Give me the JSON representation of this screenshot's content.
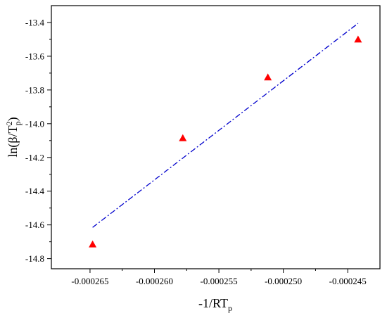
{
  "chart_data": {
    "type": "scatter",
    "xlabel": "-1/RT",
    "xlabel_sub": "p",
    "ylabel": {
      "prefix": "ln(β/T",
      "sup": "2",
      "sub": "p",
      "suffix": ")"
    },
    "xlim": [
      -0.000268,
      -0.0002425
    ],
    "ylim": [
      -14.86,
      -13.3
    ],
    "xticks": [
      -0.000265,
      -0.00026,
      -0.000255,
      -0.00025,
      -0.000245
    ],
    "xtick_labels": [
      "-0.000265",
      "-0.000260",
      "-0.000255",
      "-0.000250",
      "-0.000245"
    ],
    "yticks": [
      -14.8,
      -14.6,
      -14.4,
      -14.2,
      -14.0,
      -13.8,
      -13.6,
      -13.4
    ],
    "ytick_labels": [
      "-14.8",
      "-14.6",
      "-14.4",
      "-14.2",
      "-14.0",
      "-13.8",
      "-13.6",
      "-13.4"
    ],
    "series": [
      {
        "kind": "points",
        "marker": "triangle",
        "color": "#ff0000",
        "x": [
          -0.0002648,
          -0.0002578,
          -0.0002512,
          -0.0002442
        ],
        "y": [
          -14.715,
          -14.085,
          -13.725,
          -13.5
        ]
      },
      {
        "kind": "fit-line",
        "style": "dash-dot",
        "color": "#0000cc",
        "x": [
          -0.0002648,
          -0.0002442
        ],
        "y": [
          -14.615,
          -13.405
        ]
      }
    ],
    "grid": false,
    "legend": "none"
  }
}
